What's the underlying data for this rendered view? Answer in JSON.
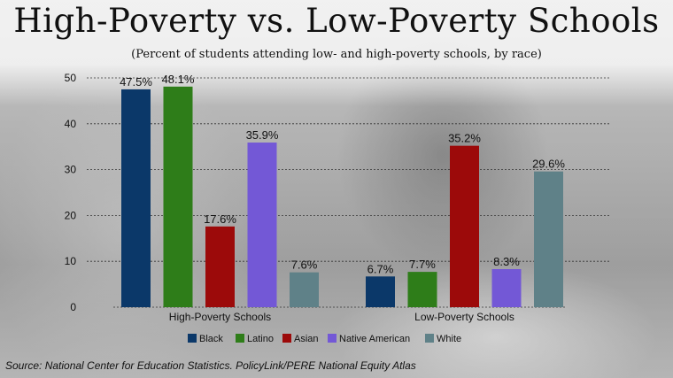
{
  "title": "High-Poverty vs. Low-Poverty Schools",
  "subtitle": "(Percent of students attending low- and high-poverty schools, by race)",
  "source": "Source: National Center for Education Statistics. PolicyLink/PERE National Equity Atlas",
  "chart_data": {
    "type": "bar",
    "title": "High-Poverty vs. Low-Poverty Schools",
    "subtitle": "(Percent of students attending low- and high-poverty schools, by race)",
    "categories": [
      "High-Poverty Schools",
      "Low-Poverty Schools"
    ],
    "series": [
      {
        "name": "Black",
        "color": "#0b3869",
        "values": [
          47.5,
          6.7
        ],
        "labels": [
          "47.5%",
          "6.7%"
        ]
      },
      {
        "name": "Latino",
        "color": "#2e7d19",
        "values": [
          48.1,
          7.7
        ],
        "labels": [
          "48.1%",
          "7.7%"
        ]
      },
      {
        "name": "Asian",
        "color": "#9c0a0a",
        "values": [
          17.6,
          35.2
        ],
        "labels": [
          "17.6%",
          "35.2%"
        ]
      },
      {
        "name": "Native American",
        "color": "#7358d6",
        "values": [
          35.9,
          8.3
        ],
        "labels": [
          "35.9%",
          "8.3%"
        ]
      },
      {
        "name": "White",
        "color": "#5f8188",
        "values": [
          7.6,
          29.6
        ],
        "labels": [
          "7.6%",
          "29.6%"
        ]
      }
    ],
    "yticks": [
      0,
      10,
      20,
      30,
      40,
      50
    ],
    "ylim": [
      0,
      50
    ],
    "grid": true,
    "legend_position": "bottom"
  }
}
